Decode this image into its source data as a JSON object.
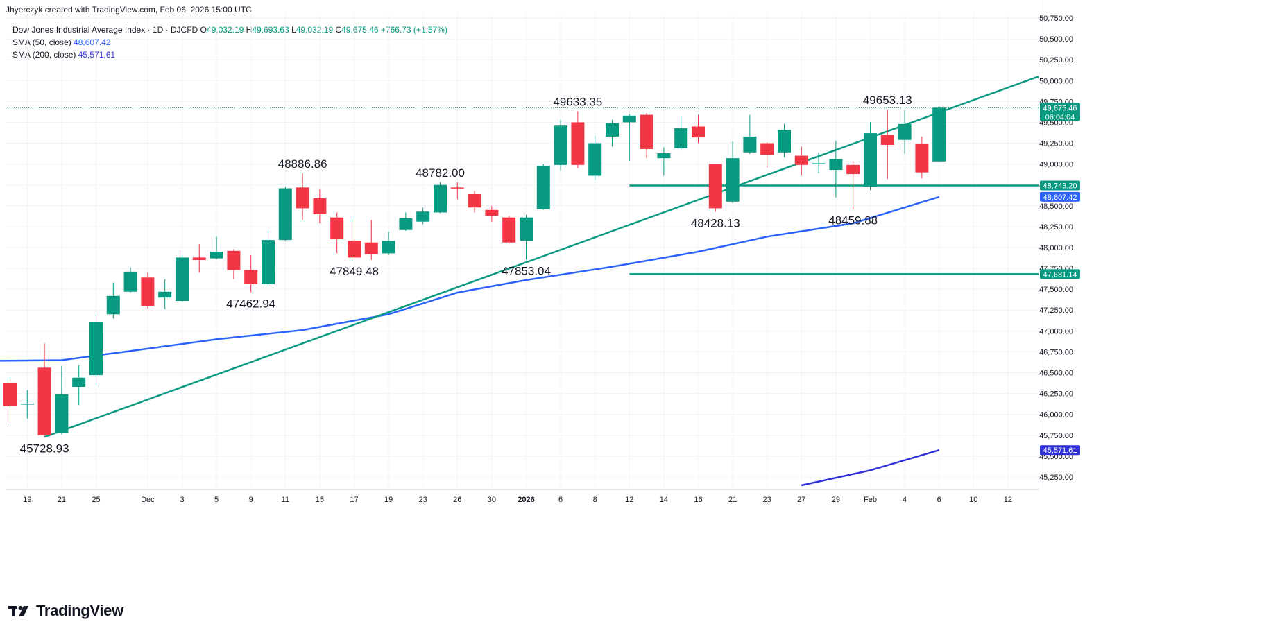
{
  "header": {
    "caption": "Jhyerczyk created with TradingView.com, Feb 06, 2026 15:00 UTC"
  },
  "legend": {
    "symbol": "Dow Jones Industrial Average Index · 1D · DJCFD",
    "open_label": "O",
    "open": "49,032.19",
    "high_label": "H",
    "high": "49,693.63",
    "low_label": "L",
    "low": "49,032.19",
    "close_label": "C",
    "close": "49,675.46",
    "change": "+766.73 (+1.57%)",
    "sma50_label": "SMA (50, close)",
    "sma50_value": "48,607.42",
    "sma200_label": "SMA (200, close)",
    "sma200_value": "45,571.61"
  },
  "brand": {
    "name": "TradingView",
    "icon": "tradingview-logo-icon"
  },
  "colors": {
    "up": "#089981",
    "down": "#f23645",
    "sma50": "#2962ff",
    "sma200": "#3030d8",
    "trendline": "#089981",
    "grid": "#f0f3fa",
    "text": "#131722"
  },
  "chart_data": {
    "type": "candlestick",
    "title": "Dow Jones Industrial Average Index · 1D · DJCFD",
    "ylim": [
      45100,
      50800
    ],
    "grid": true,
    "y_ticks": [
      45250,
      45500,
      45750,
      46000,
      46250,
      46500,
      46750,
      47000,
      47250,
      47500,
      47750,
      48000,
      48250,
      48500,
      48750,
      49000,
      49250,
      49500,
      49750,
      50000,
      50250,
      50500,
      50750
    ],
    "y_tick_labels": [
      "45,250.00",
      "45,500.00",
      "45,750.00",
      "46,000.00",
      "46,250.00",
      "46,500.00",
      "46,750.00",
      "47,000.00",
      "47,250.00",
      "47,500.00",
      "47,750.00",
      "48,000.00",
      "48,250.00",
      "48,500.00",
      "48,750.00",
      "49,000.00",
      "49,250.00",
      "49,500.00",
      "49,750.00",
      "50,000.00",
      "50,250.00",
      "50,500.00",
      "50,750.00"
    ],
    "x_ticks": [
      {
        "date": "2025-11-19",
        "label": "19"
      },
      {
        "date": "2025-11-21",
        "label": "21"
      },
      {
        "date": "2025-11-25",
        "label": "25"
      },
      {
        "date": "2025-12-01",
        "label": "Dec"
      },
      {
        "date": "2025-12-03",
        "label": "3"
      },
      {
        "date": "2025-12-05",
        "label": "5"
      },
      {
        "date": "2025-12-09",
        "label": "9"
      },
      {
        "date": "2025-12-11",
        "label": "11"
      },
      {
        "date": "2025-12-15",
        "label": "15"
      },
      {
        "date": "2025-12-17",
        "label": "17"
      },
      {
        "date": "2025-12-19",
        "label": "19"
      },
      {
        "date": "2025-12-23",
        "label": "23"
      },
      {
        "date": "2025-12-26",
        "label": "26"
      },
      {
        "date": "2025-12-30",
        "label": "30"
      },
      {
        "date": "2026-01-02",
        "label": "2026"
      },
      {
        "date": "2026-01-06",
        "label": "6"
      },
      {
        "date": "2026-01-08",
        "label": "8"
      },
      {
        "date": "2026-01-12",
        "label": "12"
      },
      {
        "date": "2026-01-14",
        "label": "14"
      },
      {
        "date": "2026-01-16",
        "label": "16"
      },
      {
        "date": "2026-01-21",
        "label": "21"
      },
      {
        "date": "2026-01-23",
        "label": "23"
      },
      {
        "date": "2026-01-27",
        "label": "27"
      },
      {
        "date": "2026-01-29",
        "label": "29"
      },
      {
        "date": "2026-02-02",
        "label": "Feb"
      },
      {
        "date": "2026-02-04",
        "label": "4"
      },
      {
        "date": "2026-02-06",
        "label": "6"
      },
      {
        "date": "2026-02-10",
        "label": "10"
      },
      {
        "date": "2026-02-12",
        "label": "12"
      }
    ],
    "candles": [
      {
        "date": "2025-11-18",
        "o": 46380,
        "h": 46420,
        "l": 45900,
        "c": 46100
      },
      {
        "date": "2025-11-19",
        "o": 46130,
        "h": 46290,
        "l": 45950,
        "c": 46130
      },
      {
        "date": "2025-11-20",
        "o": 46560,
        "h": 46850,
        "l": 45728.93,
        "c": 45750
      },
      {
        "date": "2025-11-21",
        "o": 45780,
        "h": 46580,
        "l": 45760,
        "c": 46240
      },
      {
        "date": "2025-11-24",
        "o": 46330,
        "h": 46590,
        "l": 46110,
        "c": 46440
      },
      {
        "date": "2025-11-25",
        "o": 46470,
        "h": 47200,
        "l": 46350,
        "c": 47110
      },
      {
        "date": "2025-11-26",
        "o": 47200,
        "h": 47580,
        "l": 47150,
        "c": 47420
      },
      {
        "date": "2025-11-28",
        "o": 47470,
        "h": 47760,
        "l": 47460,
        "c": 47710
      },
      {
        "date": "2025-12-01",
        "o": 47640,
        "h": 47700,
        "l": 47270,
        "c": 47300
      },
      {
        "date": "2025-12-02",
        "o": 47400,
        "h": 47620,
        "l": 47260,
        "c": 47470
      },
      {
        "date": "2025-12-03",
        "o": 47360,
        "h": 47970,
        "l": 47350,
        "c": 47880
      },
      {
        "date": "2025-12-04",
        "o": 47880,
        "h": 48040,
        "l": 47700,
        "c": 47850
      },
      {
        "date": "2025-12-05",
        "o": 47870,
        "h": 48130,
        "l": 47860,
        "c": 47950
      },
      {
        "date": "2025-12-08",
        "o": 47960,
        "h": 47980,
        "l": 47620,
        "c": 47730
      },
      {
        "date": "2025-12-09",
        "o": 47730,
        "h": 47910,
        "l": 47462.94,
        "c": 47560
      },
      {
        "date": "2025-12-10",
        "o": 47560,
        "h": 48200,
        "l": 47540,
        "c": 48090
      },
      {
        "date": "2025-12-11",
        "o": 48090,
        "h": 48730,
        "l": 48080,
        "c": 48710
      },
      {
        "date": "2025-12-12",
        "o": 48720,
        "h": 48886.86,
        "l": 48330,
        "c": 48470
      },
      {
        "date": "2025-12-15",
        "o": 48590,
        "h": 48700,
        "l": 48290,
        "c": 48400
      },
      {
        "date": "2025-12-16",
        "o": 48360,
        "h": 48420,
        "l": 47930,
        "c": 48100
      },
      {
        "date": "2025-12-17",
        "o": 48080,
        "h": 48340,
        "l": 47849.48,
        "c": 47880
      },
      {
        "date": "2025-12-18",
        "o": 48060,
        "h": 48330,
        "l": 47850,
        "c": 47920
      },
      {
        "date": "2025-12-19",
        "o": 47930,
        "h": 48190,
        "l": 47910,
        "c": 48080
      },
      {
        "date": "2025-12-22",
        "o": 48210,
        "h": 48420,
        "l": 48200,
        "c": 48350
      },
      {
        "date": "2025-12-23",
        "o": 48310,
        "h": 48480,
        "l": 48280,
        "c": 48430
      },
      {
        "date": "2025-12-24",
        "o": 48420,
        "h": 48782.0,
        "l": 48410,
        "c": 48750
      },
      {
        "date": "2025-12-26",
        "o": 48720,
        "h": 48782,
        "l": 48580,
        "c": 48710
      },
      {
        "date": "2025-12-29",
        "o": 48640,
        "h": 48680,
        "l": 48420,
        "c": 48480
      },
      {
        "date": "2025-12-30",
        "o": 48450,
        "h": 48500,
        "l": 48310,
        "c": 48380
      },
      {
        "date": "2025-12-31",
        "o": 48360,
        "h": 48380,
        "l": 48040,
        "c": 48060
      },
      {
        "date": "2026-01-02",
        "o": 48080,
        "h": 48390,
        "l": 47853.04,
        "c": 48360
      },
      {
        "date": "2026-01-05",
        "o": 48460,
        "h": 49000,
        "l": 48450,
        "c": 48980
      },
      {
        "date": "2026-01-06",
        "o": 48990,
        "h": 49530,
        "l": 48920,
        "c": 49460
      },
      {
        "date": "2026-01-07",
        "o": 49500,
        "h": 49633.35,
        "l": 48950,
        "c": 48990
      },
      {
        "date": "2026-01-08",
        "o": 48860,
        "h": 49340,
        "l": 48810,
        "c": 49250
      },
      {
        "date": "2026-01-09",
        "o": 49330,
        "h": 49530,
        "l": 49210,
        "c": 49490
      },
      {
        "date": "2026-01-12",
        "o": 49500,
        "h": 49600,
        "l": 49040,
        "c": 49580
      },
      {
        "date": "2026-01-13",
        "o": 49590,
        "h": 49610,
        "l": 49070,
        "c": 49180
      },
      {
        "date": "2026-01-14",
        "o": 49070,
        "h": 49200,
        "l": 48860,
        "c": 49130
      },
      {
        "date": "2026-01-15",
        "o": 49190,
        "h": 49570,
        "l": 49170,
        "c": 49430
      },
      {
        "date": "2026-01-16",
        "o": 49450,
        "h": 49590,
        "l": 49250,
        "c": 49320
      },
      {
        "date": "2026-01-20",
        "o": 49000,
        "h": 49000,
        "l": 48428.13,
        "c": 48470
      },
      {
        "date": "2026-01-21",
        "o": 48550,
        "h": 49270,
        "l": 48530,
        "c": 49070
      },
      {
        "date": "2026-01-22",
        "o": 49140,
        "h": 49590,
        "l": 49120,
        "c": 49330
      },
      {
        "date": "2026-01-23",
        "o": 49250,
        "h": 49260,
        "l": 48960,
        "c": 49110
      },
      {
        "date": "2026-01-26",
        "o": 49140,
        "h": 49480,
        "l": 49080,
        "c": 49410
      },
      {
        "date": "2026-01-27",
        "o": 49100,
        "h": 49210,
        "l": 48860,
        "c": 48990
      },
      {
        "date": "2026-01-28",
        "o": 49010,
        "h": 49140,
        "l": 48890,
        "c": 49010
      },
      {
        "date": "2026-01-29",
        "o": 48930,
        "h": 49280,
        "l": 48600,
        "c": 49060
      },
      {
        "date": "2026-01-30",
        "o": 48990,
        "h": 49030,
        "l": 48459.88,
        "c": 48880
      },
      {
        "date": "2026-02-02",
        "o": 48730,
        "h": 49500,
        "l": 48690,
        "c": 49370
      },
      {
        "date": "2026-02-03",
        "o": 49350,
        "h": 49653.13,
        "l": 48820,
        "c": 49230
      },
      {
        "date": "2026-02-04",
        "o": 49290,
        "h": 49650,
        "l": 49120,
        "c": 49480
      },
      {
        "date": "2026-02-05",
        "o": 49240,
        "h": 49330,
        "l": 48830,
        "c": 48900
      },
      {
        "date": "2026-02-06",
        "o": 49032.19,
        "h": 49693.63,
        "l": 49032.19,
        "c": 49675.46
      }
    ],
    "sma50": {
      "name": "SMA (50, close)",
      "points": [
        {
          "date": "2025-11-14",
          "v": 46640
        },
        {
          "date": "2025-11-21",
          "v": 46650
        },
        {
          "date": "2025-11-28",
          "v": 46760
        },
        {
          "date": "2025-12-05",
          "v": 46900
        },
        {
          "date": "2025-12-12",
          "v": 47010
        },
        {
          "date": "2025-12-19",
          "v": 47200
        },
        {
          "date": "2025-12-26",
          "v": 47460
        },
        {
          "date": "2026-01-02",
          "v": 47610
        },
        {
          "date": "2026-01-09",
          "v": 47770
        },
        {
          "date": "2026-01-16",
          "v": 47950
        },
        {
          "date": "2026-01-23",
          "v": 48130
        },
        {
          "date": "2026-01-30",
          "v": 48290
        },
        {
          "date": "2026-02-06",
          "v": 48607.42
        }
      ]
    },
    "sma200": {
      "name": "SMA (200, close)",
      "points": [
        {
          "date": "2026-01-27",
          "v": 45150
        },
        {
          "date": "2026-02-02",
          "v": 45330
        },
        {
          "date": "2026-02-06",
          "v": 45571.61
        }
      ]
    },
    "trendlines": [
      {
        "from": {
          "date": "2025-11-20",
          "v": 45728.93
        },
        "to": {
          "date": "2026-02-17",
          "v": 50050
        }
      },
      {
        "from": {
          "date": "2026-01-12",
          "v": 48743.2
        },
        "to": {
          "date": "2026-02-18",
          "v": 48743.2
        }
      },
      {
        "from": {
          "date": "2026-01-12",
          "v": 47681.14
        },
        "to": {
          "date": "2026-02-18",
          "v": 47681.14
        }
      }
    ],
    "annotations": [
      {
        "text": "45728.93",
        "date": "2025-11-20",
        "v": 45728.93,
        "pos": "below"
      },
      {
        "text": "48886.86",
        "date": "2025-12-12",
        "v": 48886.86,
        "pos": "above"
      },
      {
        "text": "47462.94",
        "date": "2025-12-09",
        "v": 47462.94,
        "pos": "below"
      },
      {
        "text": "47849.48",
        "date": "2025-12-17",
        "v": 47849.48,
        "pos": "below"
      },
      {
        "text": "48782.00",
        "date": "2025-12-24",
        "v": 48782.0,
        "pos": "above"
      },
      {
        "text": "47853.04",
        "date": "2026-01-02",
        "v": 47853.04,
        "pos": "below"
      },
      {
        "text": "49633.35",
        "date": "2026-01-07",
        "v": 49633.35,
        "pos": "above"
      },
      {
        "text": "48428.13",
        "date": "2026-01-20",
        "v": 48428.13,
        "pos": "below"
      },
      {
        "text": "48459.88",
        "date": "2026-01-30",
        "v": 48459.88,
        "pos": "below"
      },
      {
        "text": "49653.13",
        "date": "2026-02-03",
        "v": 49653.13,
        "pos": "above"
      }
    ],
    "price_labels": [
      {
        "text": "49,675.46",
        "sub": "06:04:04",
        "v": 49675.46,
        "color": "#089981"
      },
      {
        "text": "48,743.20",
        "v": 48743.2,
        "color": "#089981"
      },
      {
        "text": "48,607.42",
        "v": 48607.42,
        "color": "#2962ff"
      },
      {
        "text": "47,681.14",
        "v": 47681.14,
        "color": "#089981"
      },
      {
        "text": "45,571.61",
        "v": 45571.61,
        "color": "#3030d8"
      }
    ],
    "last_price": 49675.46
  }
}
